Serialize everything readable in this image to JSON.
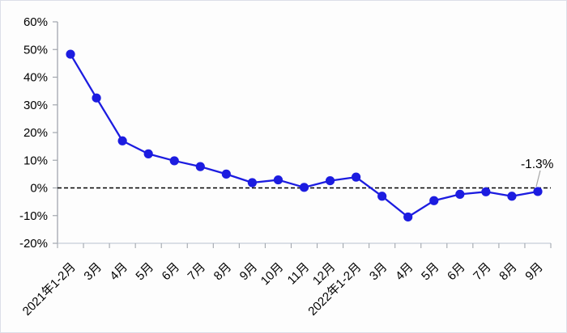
{
  "chart_data": {
    "type": "line",
    "title": "",
    "xlabel": "",
    "ylabel": "",
    "categories": [
      "2021年1-2月",
      "3月",
      "4月",
      "5月",
      "6月",
      "7月",
      "8月",
      "9月",
      "10月",
      "11月",
      "12月",
      "2022年1-2月",
      "3月",
      "4月",
      "5月",
      "6月",
      "7月",
      "8月",
      "9月"
    ],
    "values": [
      48.3,
      32.5,
      17.0,
      12.3,
      9.8,
      7.7,
      5.0,
      1.9,
      2.9,
      0.2,
      2.6,
      3.9,
      -3.0,
      -10.5,
      -4.6,
      -2.3,
      -1.4,
      -3.0,
      -1.3
    ],
    "ylim": [
      -20,
      60
    ],
    "y_ticks": [
      {
        "label": "60%",
        "value": 60
      },
      {
        "label": "50%",
        "value": 50
      },
      {
        "label": "40%",
        "value": 40
      },
      {
        "label": "30%",
        "value": 30
      },
      {
        "label": "20%",
        "value": 20
      },
      {
        "label": "10%",
        "value": 10
      },
      {
        "label": "0%",
        "value": 0
      },
      {
        "label": "-10%",
        "value": -10
      },
      {
        "label": "-20%",
        "value": -20
      }
    ],
    "grid": false,
    "legend": null,
    "zero_baseline": {
      "style": "dashed",
      "value": 0
    },
    "annotation": {
      "text": "-1.3%",
      "index": 18
    },
    "colors": {
      "line": "#1c1ce0",
      "marker": "#1c1ce0",
      "y_axis": "#a2a7ae",
      "x_axis": "#c6cdd9",
      "tick": "#a2a7ae",
      "zero_line": "#000000",
      "leader": "#a6a6a6",
      "text": "#000000",
      "background": "#fdfdfd"
    }
  }
}
